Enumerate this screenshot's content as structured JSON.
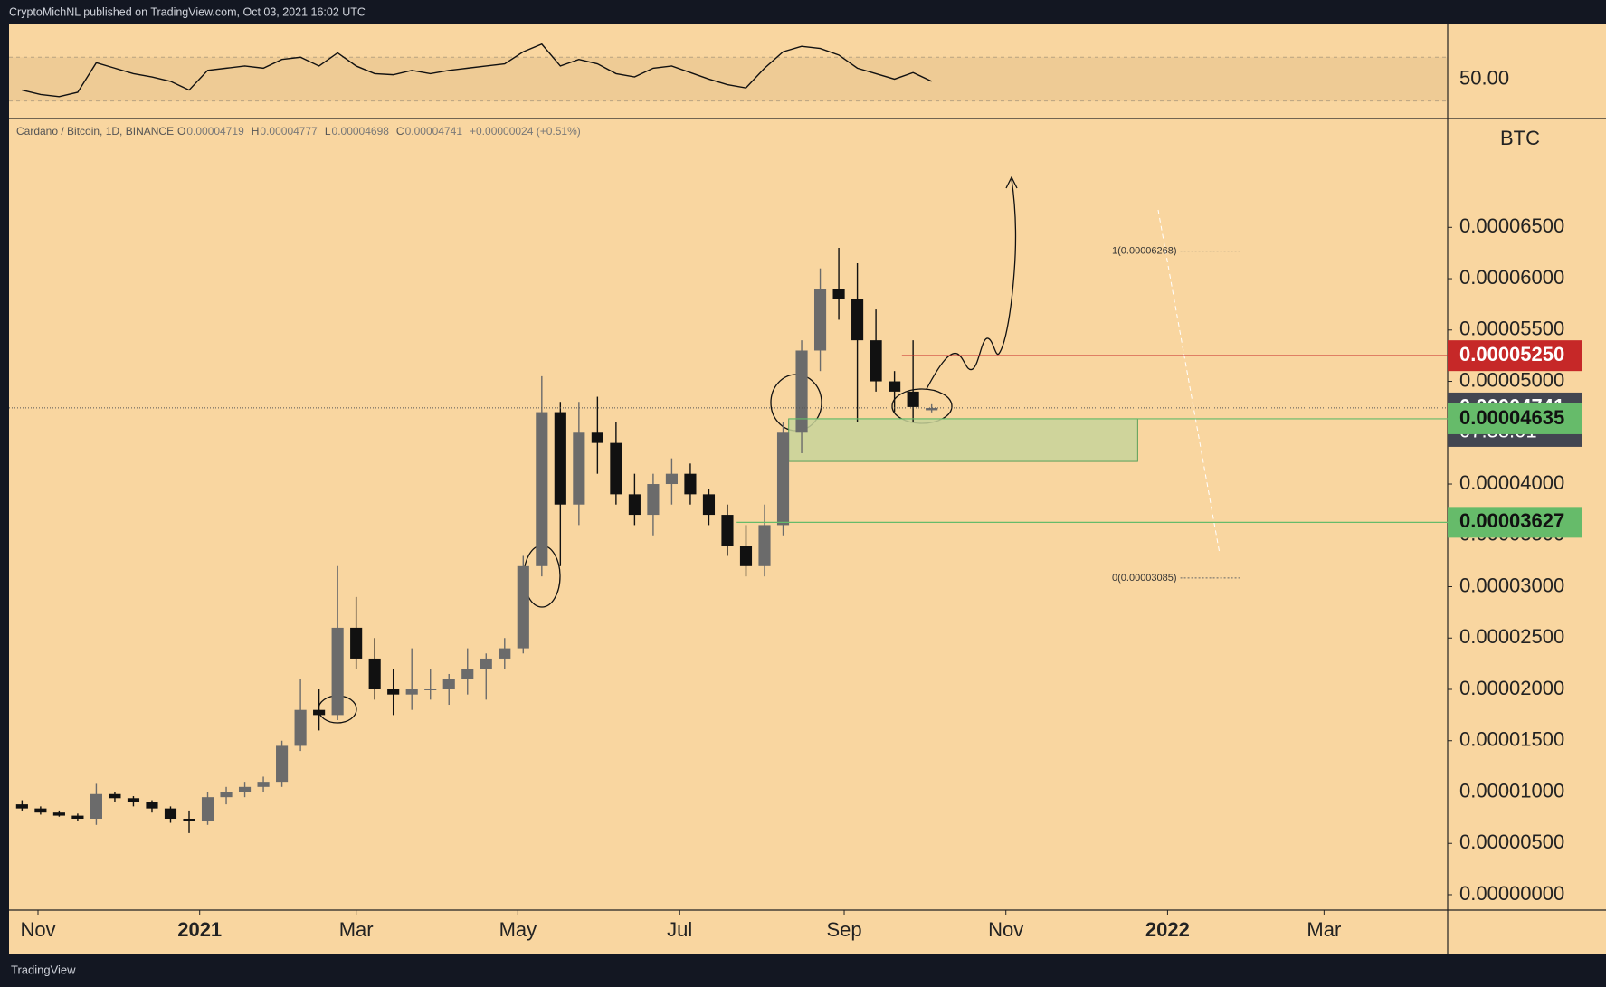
{
  "header": {
    "text": "CryptoMichNL published on TradingView.com, Oct 03, 2021 16:02 UTC"
  },
  "footer": {
    "text": "TradingView"
  },
  "chart_data": {
    "type": "candlestick",
    "symbol": "Cardano / Bitcoin, 1D, BINANCE",
    "change": "+0.00000024 (+0.51%)",
    "ohlc_names": [
      "O",
      "H",
      "L",
      "C"
    ],
    "unit": "BTC",
    "x": [
      2,
      3,
      4,
      5,
      6,
      7,
      8,
      9,
      10,
      11,
      12,
      13,
      14,
      15,
      16,
      17,
      18,
      19,
      20,
      21,
      22,
      23,
      24,
      25,
      26,
      27,
      28,
      29,
      30,
      31,
      32,
      33,
      34,
      35,
      36,
      37,
      38,
      39,
      40,
      41,
      42,
      43,
      44,
      45,
      46,
      47,
      48,
      49,
      50,
      51
    ],
    "open": [
      8.8e-06,
      8.4e-06,
      8e-06,
      7.7e-06,
      7.4e-06,
      9.8e-06,
      9.4e-06,
      9e-06,
      8.4e-06,
      7.4e-06,
      7.2e-06,
      9.5e-06,
      1e-05,
      1.05e-05,
      1.1e-05,
      1.45e-05,
      1.8e-05,
      1.75e-05,
      2.6e-05,
      2.3e-05,
      2e-05,
      1.95e-05,
      2e-05,
      2e-05,
      2.1e-05,
      2.2e-05,
      2.3e-05,
      2.4e-05,
      3.2e-05,
      4.7e-05,
      3.8e-05,
      4.5e-05,
      4.4e-05,
      3.9e-05,
      3.7e-05,
      4e-05,
      4.1e-05,
      3.9e-05,
      3.7e-05,
      3.4e-05,
      3.2e-05,
      3.6e-05,
      4.5e-05,
      5.3e-05,
      5.9e-05,
      5.8e-05,
      5.4e-05,
      5e-05,
      4.9e-05,
      4.719e-05
    ],
    "high": [
      9.2e-06,
      8.6e-06,
      8.2e-06,
      7.9e-06,
      1.08e-05,
      1e-05,
      9.6e-06,
      9.2e-06,
      8.6e-06,
      8.2e-06,
      1e-05,
      1.05e-05,
      1.1e-05,
      1.15e-05,
      1.5e-05,
      2.1e-05,
      2e-05,
      3.2e-05,
      2.9e-05,
      2.5e-05,
      2.2e-05,
      2.4e-05,
      2.2e-05,
      2.15e-05,
      2.4e-05,
      2.35e-05,
      2.5e-05,
      3.3e-05,
      5.05e-05,
      4.8e-05,
      4.8e-05,
      4.85e-05,
      4.6e-05,
      4.1e-05,
      4.1e-05,
      4.25e-05,
      4.2e-05,
      3.95e-05,
      3.8e-05,
      3.6e-05,
      3.8e-05,
      4.6e-05,
      5.4e-05,
      6.1e-05,
      6.3e-05,
      6.15e-05,
      5.7e-05,
      5.1e-05,
      5.4e-05,
      4.777e-05
    ],
    "low": [
      8.2e-06,
      7.8e-06,
      7.6e-06,
      7.2e-06,
      6.8e-06,
      9e-06,
      8.6e-06,
      8e-06,
      7e-06,
      6e-06,
      6.8e-06,
      8.8e-06,
      9.5e-06,
      1e-05,
      1.05e-05,
      1.4e-05,
      1.6e-05,
      1.7e-05,
      2.2e-05,
      1.9e-05,
      1.75e-05,
      1.8e-05,
      1.9e-05,
      1.85e-05,
      1.95e-05,
      1.9e-05,
      2.2e-05,
      2.35e-05,
      3.1e-05,
      3.2e-05,
      3.6e-05,
      4.1e-05,
      3.8e-05,
      3.6e-05,
      3.5e-05,
      3.8e-05,
      3.8e-05,
      3.6e-05,
      3.3e-05,
      3.1e-05,
      3.1e-05,
      3.5e-05,
      4.3e-05,
      5.1e-05,
      5.6e-05,
      4.6e-05,
      4.9e-05,
      4.7e-05,
      4.6e-05,
      4.698e-05
    ],
    "close": [
      8.4e-06,
      8e-06,
      7.7e-06,
      7.4e-06,
      9.8e-06,
      9.4e-06,
      9e-06,
      8.4e-06,
      7.4e-06,
      7.2e-06,
      9.5e-06,
      1e-05,
      1.05e-05,
      1.1e-05,
      1.45e-05,
      1.8e-05,
      1.75e-05,
      2.6e-05,
      2.3e-05,
      2e-05,
      1.95e-05,
      2e-05,
      2e-05,
      2.1e-05,
      2.2e-05,
      2.3e-05,
      2.4e-05,
      3.2e-05,
      4.7e-05,
      3.8e-05,
      4.5e-05,
      4.4e-05,
      3.9e-05,
      3.7e-05,
      4e-05,
      4.1e-05,
      3.9e-05,
      3.7e-05,
      3.4e-05,
      3.2e-05,
      3.6e-05,
      4.5e-05,
      5.3e-05,
      5.9e-05,
      5.8e-05,
      5.4e-05,
      5e-05,
      4.9e-05,
      4.75e-05,
      4.741e-05
    ],
    "up_color": "#6b6b6b",
    "down_color": "#111111",
    "xlim": [
      1.3,
      78.8
    ],
    "xticks": [
      {
        "value": 2.86,
        "label": "Nov"
      },
      {
        "value": 11.57,
        "label": "2021"
      },
      {
        "value": 20,
        "label": "Mar"
      },
      {
        "value": 28.71,
        "label": "May"
      },
      {
        "value": 37.43,
        "label": "Jul"
      },
      {
        "value": 46.29,
        "label": "Sep"
      },
      {
        "value": 55,
        "label": "Nov"
      },
      {
        "value": 63.71,
        "label": "2022"
      },
      {
        "value": 72.14,
        "label": "Mar"
      }
    ],
    "ylim": [
      -1.5e-06,
      7.56e-05
    ],
    "yticks": [
      {
        "value": 0,
        "label": "0.00000000"
      },
      {
        "value": 5e-06,
        "label": "0.00000500"
      },
      {
        "value": 1e-05,
        "label": "0.00001000"
      },
      {
        "value": 1.5e-05,
        "label": "0.00001500"
      },
      {
        "value": 2e-05,
        "label": "0.00002000"
      },
      {
        "value": 2.5e-05,
        "label": "0.00002500"
      },
      {
        "value": 3e-05,
        "label": "0.00003000"
      },
      {
        "value": 3.5e-05,
        "label": "0.00003500"
      },
      {
        "value": 4e-05,
        "label": "0.00004000"
      },
      {
        "value": 4.5e-05,
        "label": "0.00004500"
      },
      {
        "value": 5e-05,
        "label": "0.00005000"
      },
      {
        "value": 5.5e-05,
        "label": "0.00005500"
      },
      {
        "value": 6e-05,
        "label": "0.00006000"
      },
      {
        "value": 6.5e-05,
        "label": "0.00006500"
      }
    ],
    "levels": [
      {
        "value": 5.25e-05,
        "label": "0.00005250",
        "color": "#c62828",
        "from": 49.4
      },
      {
        "value": 4.741e-05,
        "label": "0.00004741",
        "countdown": "07:58:01",
        "color": "#434651"
      },
      {
        "value": 4.635e-05,
        "label": "0.00004635",
        "color": "#66bb6a",
        "from": 43.3
      },
      {
        "value": 3.627e-05,
        "label": "0.00003627",
        "color": "#66bb6a",
        "from": 40.5
      }
    ],
    "zone": {
      "top": 4.635e-05,
      "bottom": 4.22e-05,
      "from": 43.3,
      "to": 62.1,
      "color": "#c8d49a"
    },
    "fib": [
      {
        "value": 6.268e-05,
        "label": "1(0.00006268)",
        "from": 64.4,
        "to": 67.7
      },
      {
        "value": 3.085e-05,
        "label": "0(0.00003085)",
        "from": 64.4,
        "to": 67.7
      }
    ],
    "rsi": {
      "values": [
        40,
        36,
        34,
        38,
        65,
        60,
        55,
        52,
        48,
        40,
        58,
        60,
        62,
        60,
        68,
        70,
        62,
        74,
        62,
        55,
        54,
        58,
        55,
        58,
        60,
        62,
        64,
        75,
        82,
        62,
        68,
        64,
        55,
        52,
        60,
        62,
        56,
        50,
        45,
        42,
        60,
        75,
        80,
        78,
        72,
        60,
        55,
        50,
        56,
        48
      ],
      "ylim": [
        14,
        100
      ],
      "band": [
        30,
        70
      ],
      "yticks": [
        {
          "value": 50,
          "label": "50.00"
        }
      ]
    }
  }
}
